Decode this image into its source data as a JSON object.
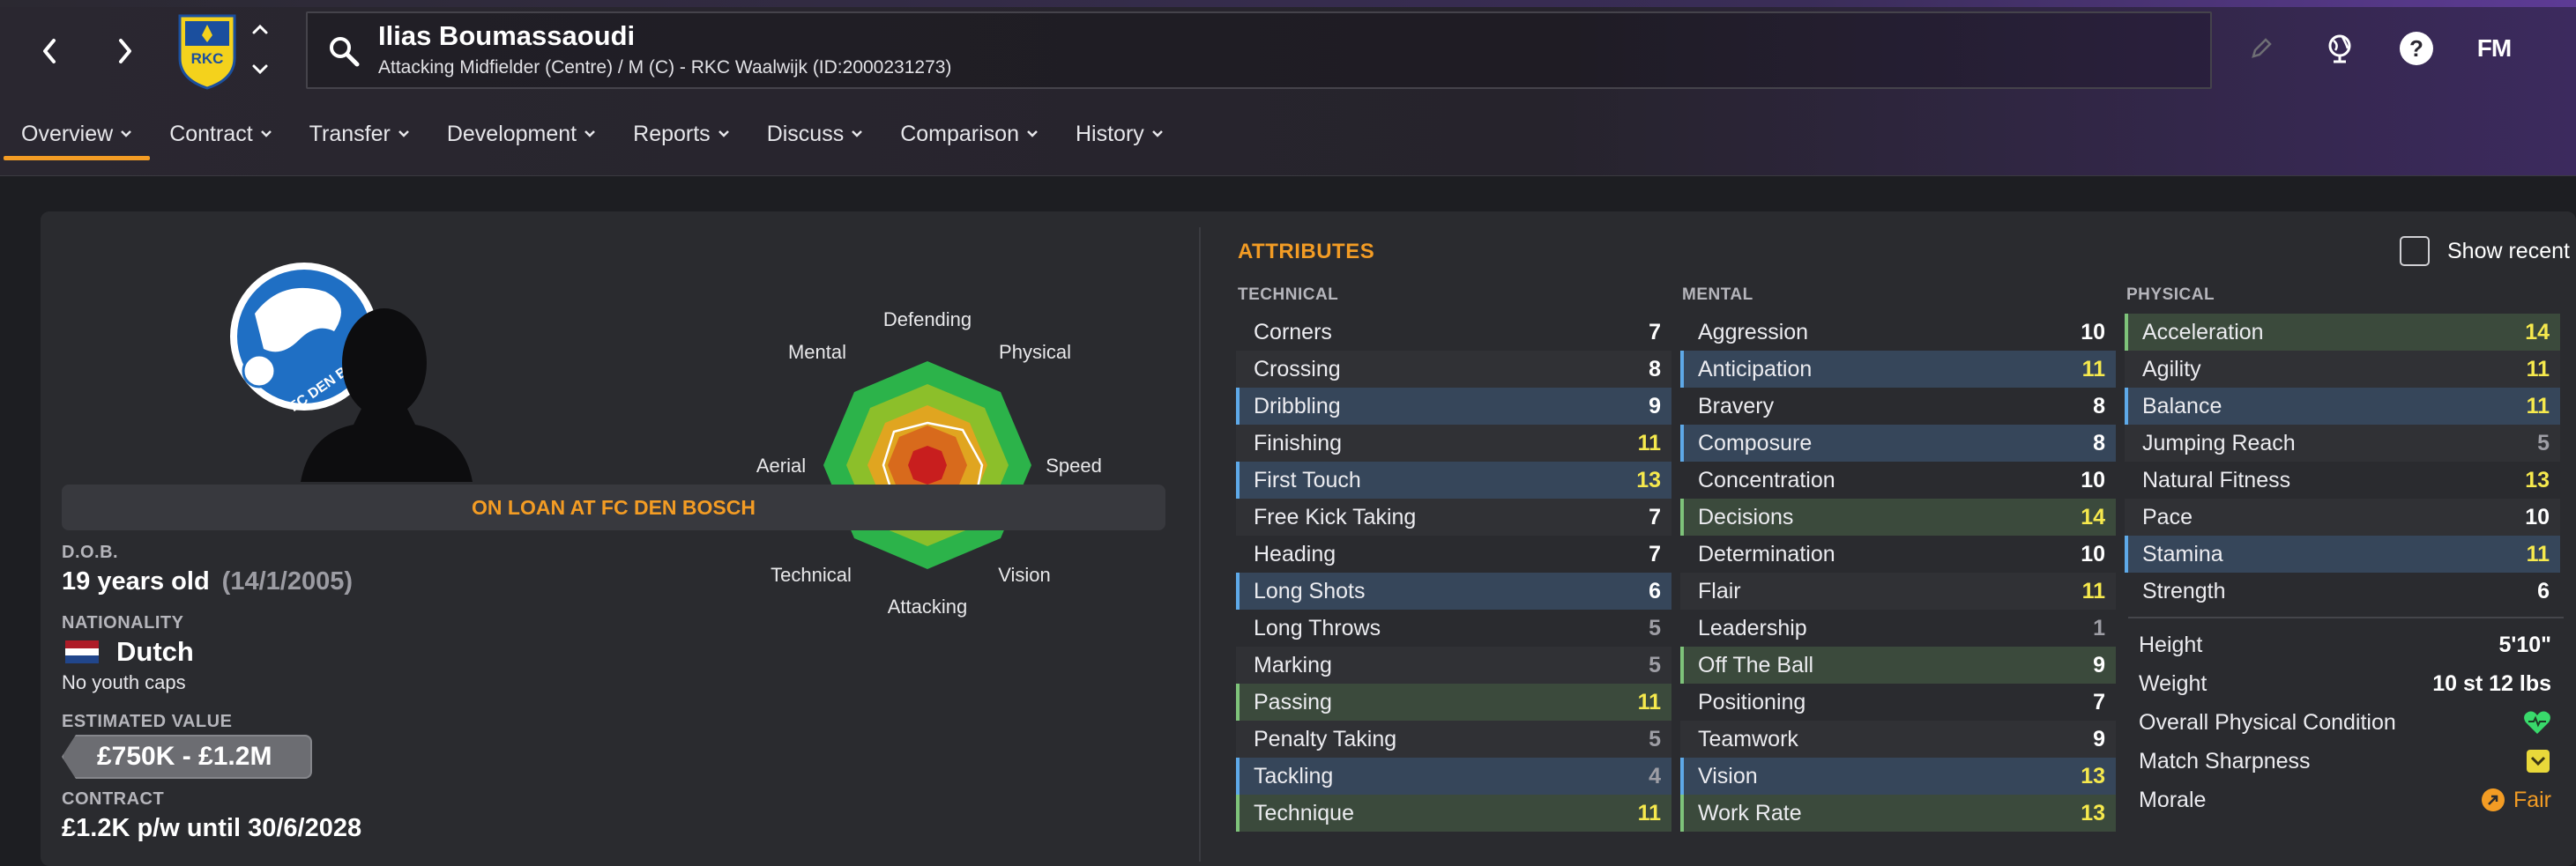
{
  "header": {
    "player_name": "Ilias Boumassaoudi",
    "player_subtitle": "Attacking Midfielder (Centre) / M (C) - RKC Waalwijk (ID:2000231273)",
    "crest_text": "RKC",
    "fm_logo": "FM"
  },
  "tabs": [
    {
      "label": "Overview",
      "active": true
    },
    {
      "label": "Contract"
    },
    {
      "label": "Transfer"
    },
    {
      "label": "Development"
    },
    {
      "label": "Reports"
    },
    {
      "label": "Discuss"
    },
    {
      "label": "Comparison"
    },
    {
      "label": "History"
    }
  ],
  "profile": {
    "club_logo_text": "FC DEN B",
    "loan_banner": "ON LOAN AT FC DEN BOSCH",
    "dob_label": "D.O.B.",
    "age": "19 years old",
    "dob": "(14/1/2005)",
    "nationality_label": "NATIONALITY",
    "nationality": "Dutch",
    "youth_caps": "No youth caps",
    "value_label": "ESTIMATED VALUE",
    "value": "£750K - £1.2M",
    "contract_label": "CONTRACT",
    "contract": "£1.2K p/w until 30/6/2028"
  },
  "radar": {
    "labels": {
      "defending": "Defending",
      "physical": "Physical",
      "speed": "Speed",
      "vision": "Vision",
      "attacking": "Attacking",
      "technical": "Technical",
      "aerial": "Aerial",
      "mental": "Mental"
    }
  },
  "attributes": {
    "title": "ATTRIBUTES",
    "show_recent": "Show recent",
    "technical_head": "TECHNICAL",
    "mental_head": "MENTAL",
    "physical_head": "PHYSICAL",
    "technical": [
      {
        "name": "Corners",
        "value": "7",
        "style": "",
        "color": "white"
      },
      {
        "name": "Crossing",
        "value": "8",
        "style": "alt",
        "color": "white"
      },
      {
        "name": "Dribbling",
        "value": "9",
        "style": "blue",
        "color": "white"
      },
      {
        "name": "Finishing",
        "value": "11",
        "style": "alt",
        "color": "yellow"
      },
      {
        "name": "First Touch",
        "value": "13",
        "style": "blue",
        "color": "yellow"
      },
      {
        "name": "Free Kick Taking",
        "value": "7",
        "style": "alt",
        "color": "white"
      },
      {
        "name": "Heading",
        "value": "7",
        "style": "",
        "color": "white"
      },
      {
        "name": "Long Shots",
        "value": "6",
        "style": "blue",
        "color": "white"
      },
      {
        "name": "Long Throws",
        "value": "5",
        "style": "",
        "color": "grey"
      },
      {
        "name": "Marking",
        "value": "5",
        "style": "alt",
        "color": "grey"
      },
      {
        "name": "Passing",
        "value": "11",
        "style": "green",
        "color": "yellow"
      },
      {
        "name": "Penalty Taking",
        "value": "5",
        "style": "alt",
        "color": "grey"
      },
      {
        "name": "Tackling",
        "value": "4",
        "style": "blue",
        "color": "grey"
      },
      {
        "name": "Technique",
        "value": "11",
        "style": "green",
        "color": "yellow"
      }
    ],
    "mental": [
      {
        "name": "Aggression",
        "value": "10",
        "style": "",
        "color": "white"
      },
      {
        "name": "Anticipation",
        "value": "11",
        "style": "blue",
        "color": "yellow"
      },
      {
        "name": "Bravery",
        "value": "8",
        "style": "",
        "color": "white"
      },
      {
        "name": "Composure",
        "value": "8",
        "style": "blue",
        "color": "white"
      },
      {
        "name": "Concentration",
        "value": "10",
        "style": "",
        "color": "white"
      },
      {
        "name": "Decisions",
        "value": "14",
        "style": "green",
        "color": "yellow"
      },
      {
        "name": "Determination",
        "value": "10",
        "style": "",
        "color": "white"
      },
      {
        "name": "Flair",
        "value": "11",
        "style": "alt",
        "color": "yellow"
      },
      {
        "name": "Leadership",
        "value": "1",
        "style": "",
        "color": "grey"
      },
      {
        "name": "Off The Ball",
        "value": "9",
        "style": "green",
        "color": "white"
      },
      {
        "name": "Positioning",
        "value": "7",
        "style": "",
        "color": "white"
      },
      {
        "name": "Teamwork",
        "value": "9",
        "style": "alt",
        "color": "white"
      },
      {
        "name": "Vision",
        "value": "13",
        "style": "blue",
        "color": "yellow"
      },
      {
        "name": "Work Rate",
        "value": "13",
        "style": "green",
        "color": "yellow"
      }
    ],
    "physical": [
      {
        "name": "Acceleration",
        "value": "14",
        "style": "green",
        "color": "yellow"
      },
      {
        "name": "Agility",
        "value": "11",
        "style": "alt",
        "color": "yellow"
      },
      {
        "name": "Balance",
        "value": "11",
        "style": "blue",
        "color": "yellow"
      },
      {
        "name": "Jumping Reach",
        "value": "5",
        "style": "alt",
        "color": "grey"
      },
      {
        "name": "Natural Fitness",
        "value": "13",
        "style": "",
        "color": "yellow"
      },
      {
        "name": "Pace",
        "value": "10",
        "style": "alt",
        "color": "white"
      },
      {
        "name": "Stamina",
        "value": "11",
        "style": "blue",
        "color": "yellow"
      },
      {
        "name": "Strength",
        "value": "6",
        "style": "",
        "color": "white"
      }
    ],
    "physical_info": {
      "height_label": "Height",
      "height": "5'10\"",
      "weight_label": "Weight",
      "weight": "10 st 12 lbs",
      "condition_label": "Overall Physical Condition",
      "sharpness_label": "Match Sharpness",
      "morale_label": "Morale",
      "morale": "Fair"
    }
  },
  "colors": {
    "accent": "#f39c24",
    "highlight_value": "#f6e94d",
    "blue_row": "#36465a",
    "green_row": "#3b4a3c"
  }
}
